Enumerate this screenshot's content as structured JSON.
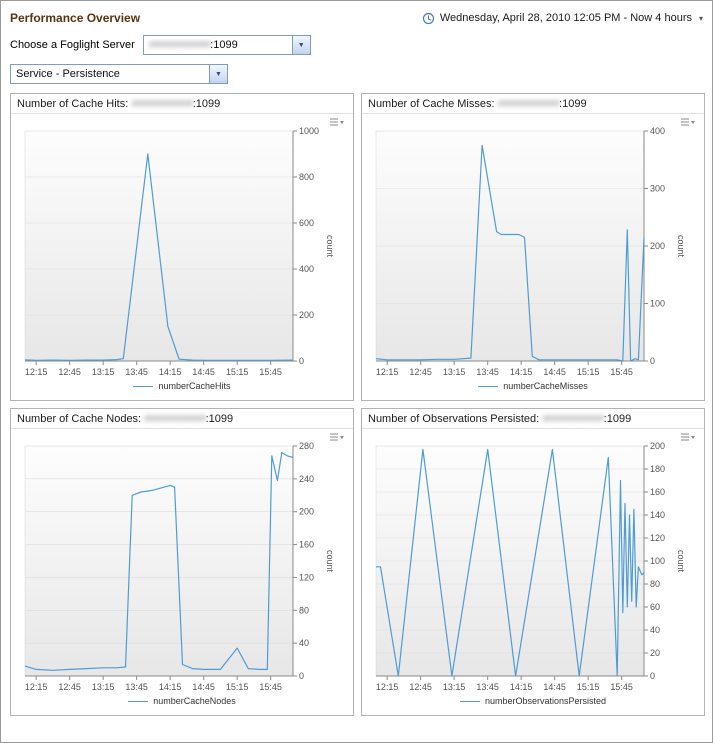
{
  "header": {
    "title": "Performance Overview",
    "time_label": "Wednesday, April 28, 2010 12:05 PM - Now 4 hours",
    "caret": "▾"
  },
  "server_select": {
    "label": "Choose a Foglight Server",
    "value_masked": "############",
    "value_suffix": ":1099",
    "arrow": "▼"
  },
  "service_select": {
    "value": "Service - Persistence",
    "arrow": "▼"
  },
  "colors": {
    "line": "#4e9cd6"
  },
  "chart_data": [
    {
      "type": "line",
      "title_prefix": "Number of Cache Hits: ",
      "server_masked": "############",
      "title_suffix": ":1099",
      "legend": "numberCacheHits",
      "ylabel": "count",
      "ylim": [
        0,
        1000
      ],
      "yticks": [
        0,
        200,
        400,
        600,
        800,
        1000
      ],
      "x_range_minutes": [
        0,
        240
      ],
      "xticks": [
        {
          "t": 10,
          "label": "12:15"
        },
        {
          "t": 40,
          "label": "12:45"
        },
        {
          "t": 70,
          "label": "13:15"
        },
        {
          "t": 100,
          "label": "13:45"
        },
        {
          "t": 130,
          "label": "14:15"
        },
        {
          "t": 160,
          "label": "14:45"
        },
        {
          "t": 190,
          "label": "15:15"
        },
        {
          "t": 220,
          "label": "15:45"
        }
      ],
      "points": [
        [
          0,
          5
        ],
        [
          10,
          3
        ],
        [
          25,
          4
        ],
        [
          40,
          3
        ],
        [
          55,
          4
        ],
        [
          70,
          4
        ],
        [
          82,
          6
        ],
        [
          88,
          10
        ],
        [
          110,
          900
        ],
        [
          128,
          150
        ],
        [
          138,
          8
        ],
        [
          150,
          4
        ],
        [
          160,
          3
        ],
        [
          175,
          3
        ],
        [
          190,
          3
        ],
        [
          205,
          3
        ],
        [
          220,
          3
        ],
        [
          240,
          4
        ]
      ]
    },
    {
      "type": "line",
      "title_prefix": "Number of Cache Misses: ",
      "server_masked": "############",
      "title_suffix": ":1099",
      "legend": "numberCacheMisses",
      "ylabel": "count",
      "ylim": [
        0,
        400
      ],
      "yticks": [
        0,
        100,
        200,
        300,
        400
      ],
      "x_range_minutes": [
        0,
        240
      ],
      "xticks": [
        {
          "t": 10,
          "label": "12:15"
        },
        {
          "t": 40,
          "label": "12:45"
        },
        {
          "t": 70,
          "label": "13:15"
        },
        {
          "t": 100,
          "label": "13:45"
        },
        {
          "t": 130,
          "label": "14:15"
        },
        {
          "t": 160,
          "label": "14:45"
        },
        {
          "t": 190,
          "label": "15:15"
        },
        {
          "t": 220,
          "label": "15:45"
        }
      ],
      "points": [
        [
          0,
          4
        ],
        [
          10,
          2
        ],
        [
          25,
          2
        ],
        [
          40,
          2
        ],
        [
          55,
          3
        ],
        [
          70,
          3
        ],
        [
          85,
          5
        ],
        [
          95,
          375
        ],
        [
          108,
          225
        ],
        [
          112,
          220
        ],
        [
          128,
          220
        ],
        [
          133,
          215
        ],
        [
          140,
          8
        ],
        [
          146,
          2
        ],
        [
          160,
          2
        ],
        [
          175,
          2
        ],
        [
          190,
          2
        ],
        [
          205,
          2
        ],
        [
          216,
          2
        ],
        [
          221,
          0
        ],
        [
          225,
          228
        ],
        [
          228,
          0
        ],
        [
          232,
          4
        ],
        [
          235,
          2
        ],
        [
          240,
          215
        ]
      ]
    },
    {
      "type": "line",
      "title_prefix": "Number of Cache Nodes: ",
      "server_masked": "############",
      "title_suffix": ":1099",
      "legend": "numberCacheNodes",
      "ylabel": "count",
      "ylim": [
        0,
        280
      ],
      "yticks": [
        0,
        40,
        80,
        120,
        160,
        200,
        240,
        280
      ],
      "x_range_minutes": [
        0,
        240
      ],
      "xticks": [
        {
          "t": 10,
          "label": "12:15"
        },
        {
          "t": 40,
          "label": "12:45"
        },
        {
          "t": 70,
          "label": "13:15"
        },
        {
          "t": 100,
          "label": "13:45"
        },
        {
          "t": 130,
          "label": "14:15"
        },
        {
          "t": 160,
          "label": "14:45"
        },
        {
          "t": 190,
          "label": "15:15"
        },
        {
          "t": 220,
          "label": "15:45"
        }
      ],
      "points": [
        [
          0,
          12
        ],
        [
          10,
          8
        ],
        [
          25,
          7
        ],
        [
          40,
          8
        ],
        [
          55,
          9
        ],
        [
          70,
          10
        ],
        [
          82,
          10
        ],
        [
          90,
          11
        ],
        [
          96,
          220
        ],
        [
          104,
          224
        ],
        [
          114,
          226
        ],
        [
          122,
          229
        ],
        [
          130,
          232
        ],
        [
          134,
          230
        ],
        [
          141,
          14
        ],
        [
          150,
          9
        ],
        [
          160,
          8
        ],
        [
          175,
          8
        ],
        [
          190,
          34
        ],
        [
          200,
          9
        ],
        [
          210,
          8
        ],
        [
          217,
          8
        ],
        [
          221,
          268
        ],
        [
          226,
          238
        ],
        [
          230,
          272
        ],
        [
          235,
          268
        ],
        [
          240,
          266
        ]
      ]
    },
    {
      "type": "line",
      "title_prefix": "Number of Observations Persisted: ",
      "server_masked": "############",
      "title_suffix": ":1099",
      "legend": "numberObservationsPersisted",
      "ylabel": "count",
      "ylim": [
        0,
        200
      ],
      "yticks": [
        0,
        20,
        40,
        60,
        80,
        100,
        120,
        140,
        160,
        180,
        200
      ],
      "x_range_minutes": [
        0,
        240
      ],
      "xticks": [
        {
          "t": 10,
          "label": "12:15"
        },
        {
          "t": 40,
          "label": "12:45"
        },
        {
          "t": 70,
          "label": "13:15"
        },
        {
          "t": 100,
          "label": "13:45"
        },
        {
          "t": 130,
          "label": "14:15"
        },
        {
          "t": 160,
          "label": "14:45"
        },
        {
          "t": 190,
          "label": "15:15"
        },
        {
          "t": 220,
          "label": "15:45"
        }
      ],
      "points": [
        [
          0,
          95
        ],
        [
          4,
          95
        ],
        [
          20,
          0
        ],
        [
          42,
          197
        ],
        [
          68,
          0
        ],
        [
          100,
          197
        ],
        [
          125,
          0
        ],
        [
          158,
          197
        ],
        [
          182,
          0
        ],
        [
          208,
          190
        ],
        [
          216,
          0
        ],
        [
          219,
          170
        ],
        [
          221,
          55
        ],
        [
          223,
          150
        ],
        [
          225,
          60
        ],
        [
          227,
          140
        ],
        [
          229,
          65
        ],
        [
          231,
          145
        ],
        [
          233,
          60
        ],
        [
          235,
          95
        ],
        [
          238,
          88
        ],
        [
          240,
          90
        ]
      ]
    }
  ]
}
